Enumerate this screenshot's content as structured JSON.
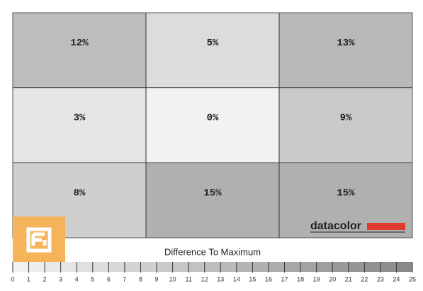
{
  "chart_data": {
    "type": "heatmap",
    "values": [
      [
        12,
        5,
        13
      ],
      [
        3,
        0,
        9
      ],
      [
        8,
        15,
        15
      ]
    ],
    "value_labels": [
      [
        "12%",
        "5%",
        "13%"
      ],
      [
        "3%",
        "0%",
        "9%"
      ],
      [
        "8%",
        "15%",
        "15%"
      ]
    ],
    "colorbar_title": "Difference To Maximum",
    "zlim": [
      0,
      25
    ],
    "zticks": [
      0,
      1,
      2,
      3,
      4,
      5,
      6,
      7,
      8,
      9,
      10,
      11,
      12,
      13,
      14,
      15,
      16,
      17,
      18,
      19,
      20,
      21,
      22,
      23,
      24,
      25
    ],
    "grid": true
  },
  "logo": "datacolor"
}
